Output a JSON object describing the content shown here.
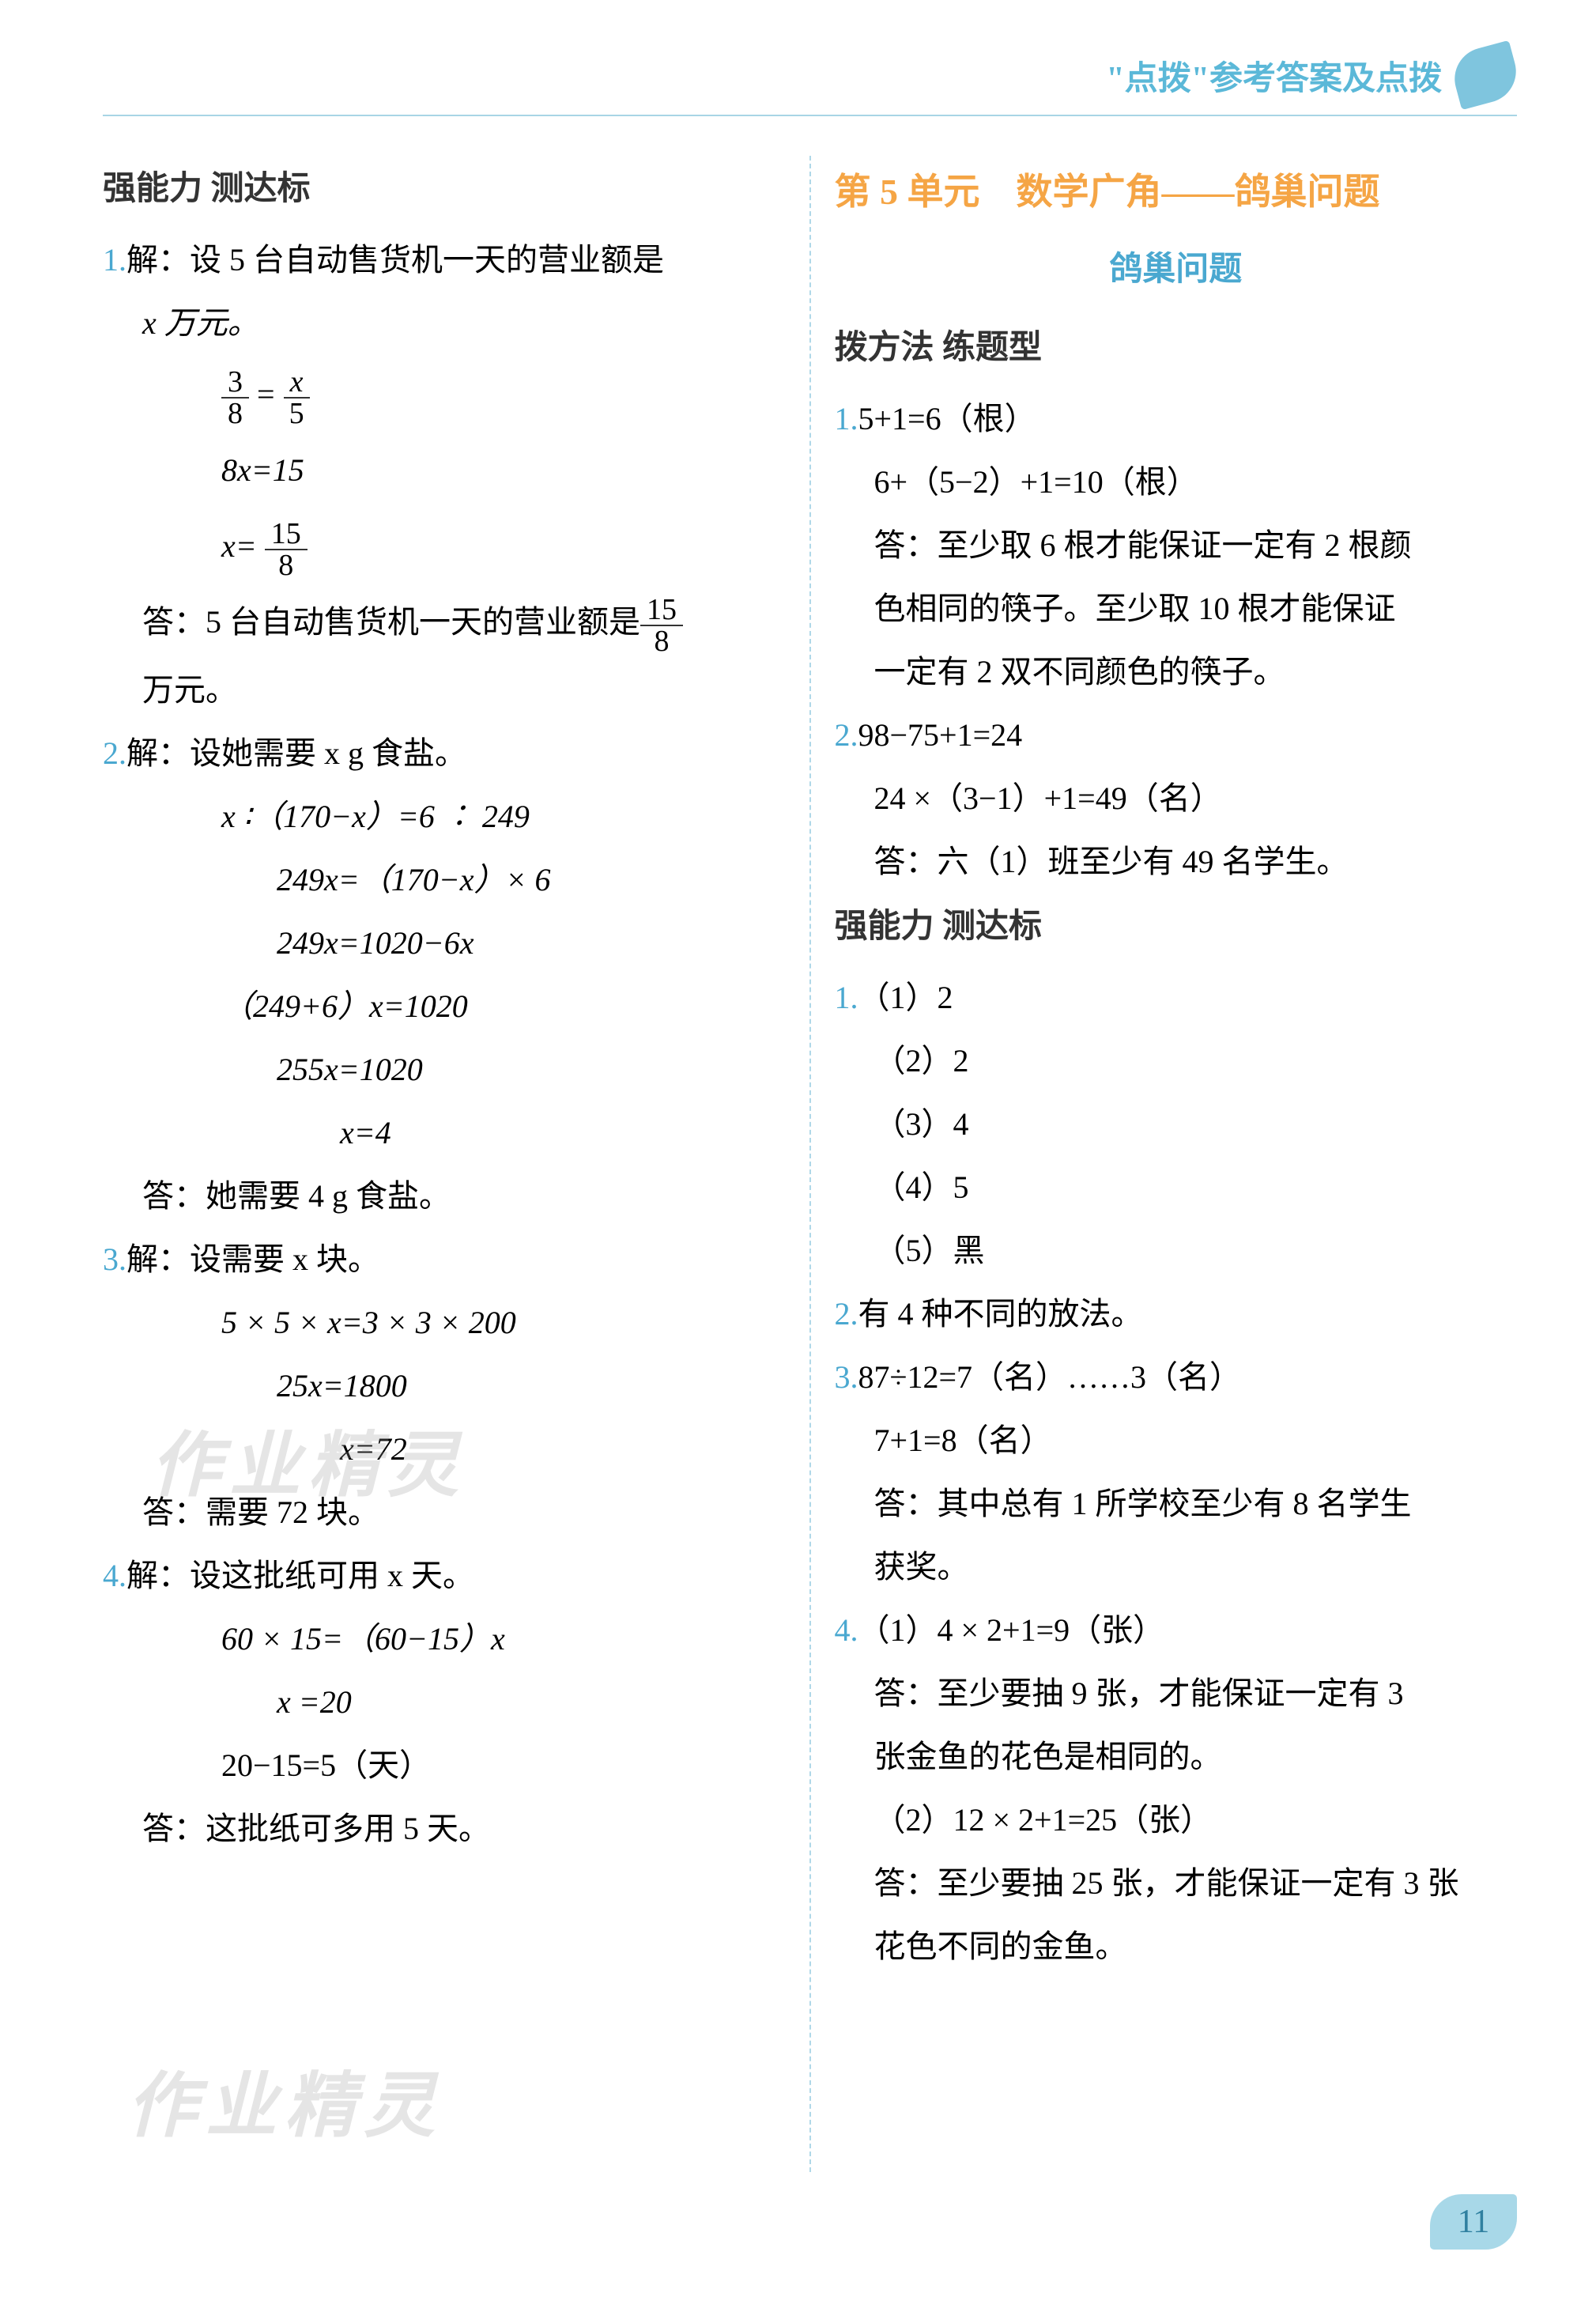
{
  "header": {
    "title": "\"点拨\"参考答案及点拨"
  },
  "left": {
    "heading": "强能力 测达标",
    "q1": {
      "num": "1.",
      "line1": "解：设 5 台自动售货机一天的营业额是",
      "line2": "x 万元。",
      "frac1_top1": "3",
      "frac1_bot1": "8",
      "frac1_eq": " = ",
      "frac1_top2": "x",
      "frac1_bot2": "5",
      "eq1": "8x=15",
      "eq2_lhs": "x=",
      "eq2_top": "15",
      "eq2_bot": "8",
      "ans1": "答：5 台自动售货机一天的营业额是",
      "ans_top": "15",
      "ans_bot": "8",
      "ans2": "万元。"
    },
    "q2": {
      "num": "2.",
      "line1": "解：设她需要 x g 食盐。",
      "eq1": "x ∶（170−x）=6 ∶ 249",
      "eq2": "249x=（170−x）× 6",
      "eq3": "249x=1020−6x",
      "eq4": "（249+6）x=1020",
      "eq5": "255x=1020",
      "eq6": "x=4",
      "ans": "答：她需要 4 g 食盐。"
    },
    "q3": {
      "num": "3.",
      "line1": "解：设需要 x 块。",
      "eq1": "5 × 5 × x=3 × 3 × 200",
      "eq2": "25x=1800",
      "eq3": "x=72",
      "ans": "答：需要 72 块。"
    },
    "q4": {
      "num": "4.",
      "line1": "解：设这批纸可用 x 天。",
      "eq1": "60 × 15=（60−15）x",
      "eq2": "x =20",
      "eq3": "20−15=5（天）",
      "ans": "答：这批纸可多用 5 天。"
    }
  },
  "right": {
    "unit_title": "第 5 单元　数学广角——鸽巢问题",
    "sub_title": "鸽巢问题",
    "heading1": "拨方法 练题型",
    "s1q1": {
      "num": "1.",
      "l1": "5+1=6（根）",
      "l2": "6+（5−2）+1=10（根）",
      "l3": "答：至少取 6 根才能保证一定有 2 根颜",
      "l4": "色相同的筷子。至少取 10 根才能保证",
      "l5": "一定有 2 双不同颜色的筷子。"
    },
    "s1q2": {
      "num": "2.",
      "l1": "98−75+1=24",
      "l2": "24 ×（3−1）+1=49（名）",
      "l3": "答：六（1）班至少有 49 名学生。"
    },
    "heading2": "强能力 测达标",
    "s2q1": {
      "num": "1.",
      "a": "（1）2",
      "b": "（2）2",
      "c": "（3）4",
      "d": "（4）5",
      "e": "（5）黑"
    },
    "s2q2": {
      "num": "2.",
      "text": "有 4 种不同的放法。"
    },
    "s2q3": {
      "num": "3.",
      "l1": "87÷12=7（名）……3（名）",
      "l2": "7+1=8（名）",
      "l3": "答：其中总有 1 所学校至少有 8 名学生",
      "l4": "获奖。"
    },
    "s2q4": {
      "num": "4.",
      "l1": "（1）4 × 2+1=9（张）",
      "l2": "答：至少要抽 9 张，才能保证一定有 3",
      "l3": "张金鱼的花色是相同的。",
      "l4": "（2）12 × 2+1=25（张）",
      "l5": "答：至少要抽 25 张，才能保证一定有 3 张",
      "l6": "花色不同的金鱼。"
    }
  },
  "watermark": "作业精灵",
  "page_number": "11"
}
